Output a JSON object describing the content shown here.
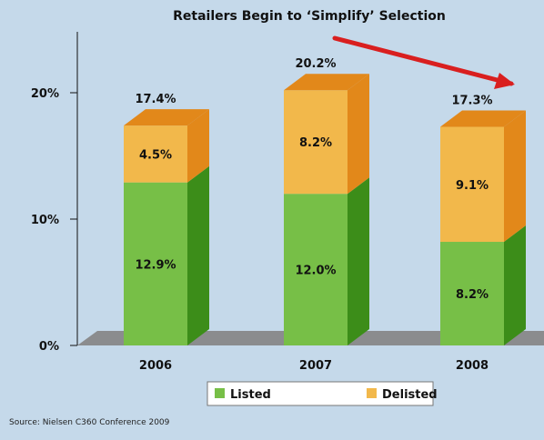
{
  "chart_data": {
    "type": "bar",
    "stacked": true,
    "title": "Retailers Begin to ‘Simplify’ Selection",
    "categories": [
      "2006",
      "2007",
      "2008"
    ],
    "series": [
      {
        "name": "Listed",
        "values": [
          12.9,
          12.0,
          8.2
        ],
        "color": "#77bf47",
        "side_color": "#3c8d19"
      },
      {
        "name": "Delisted",
        "values": [
          4.5,
          8.2,
          9.1
        ],
        "color": "#f2b84b",
        "side_color": "#e2881a"
      }
    ],
    "totals": [
      17.4,
      20.2,
      17.3
    ],
    "data_labels": {
      "listed": [
        "12.9%",
        "12.0%",
        "8.2%"
      ],
      "delisted": [
        "4.5%",
        "8.2%",
        "9.1%"
      ],
      "totals": [
        "17.4%",
        "20.2%",
        "17.3%"
      ]
    },
    "yticks": [
      {
        "value": 0,
        "label": "0%"
      },
      {
        "value": 10,
        "label": "10%"
      },
      {
        "value": 20,
        "label": "20%"
      }
    ],
    "ylim": [
      0,
      20
    ],
    "grid": false,
    "legend": {
      "position": "bottom",
      "entries": [
        "Listed",
        "Delisted"
      ]
    },
    "trend_arrow_color": "#d91f1f",
    "source": "Source: Nielsen C360 Conference 2009"
  }
}
